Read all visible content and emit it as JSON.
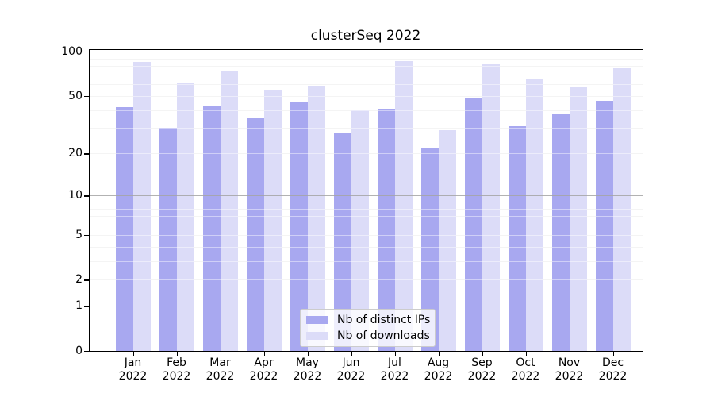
{
  "title": "clusterSeq 2022",
  "year_label": "2022",
  "colors": {
    "distinct_ips_bar": "#a8a8f0",
    "downloads_bar": "#dcdcf8",
    "major_gridline": "#b0b0b0",
    "minor_gridline": "#ececec",
    "axis": "#000000",
    "legend_border": "#cccccc"
  },
  "legend": {
    "position": "lower center",
    "items": [
      "Nb of distinct IPs",
      "Nb of downloads"
    ]
  },
  "y_axis": {
    "tick_labels": [
      "100",
      "50",
      "20",
      "10",
      "5",
      "2",
      "1",
      "0"
    ],
    "tick_values": [
      100,
      50,
      20,
      10,
      5,
      2,
      1,
      0
    ]
  },
  "chart_data": {
    "type": "bar",
    "title": "clusterSeq 2022",
    "xlabel": "",
    "ylabel": "",
    "yscale": "log1p",
    "ylim": [
      0,
      105
    ],
    "grid": true,
    "major_gridlines": [
      1,
      10,
      100
    ],
    "minor_gridlines": [
      2,
      3,
      4,
      5,
      6,
      7,
      8,
      9,
      20,
      30,
      40,
      50,
      60,
      70,
      80,
      90
    ],
    "legend_position": "lower center",
    "categories": [
      "Jan",
      "Feb",
      "Mar",
      "Apr",
      "May",
      "Jun",
      "Jul",
      "Aug",
      "Sep",
      "Oct",
      "Nov",
      "Dec"
    ],
    "category_year": "2022",
    "series": [
      {
        "name": "Nb of distinct IPs",
        "color": "#a8a8f0",
        "values": [
          42,
          30,
          43,
          35,
          45,
          28,
          41,
          22,
          48,
          31,
          38,
          46
        ]
      },
      {
        "name": "Nb of downloads",
        "color": "#dcdcf8",
        "values": [
          85,
          62,
          74,
          55,
          59,
          40,
          86,
          29,
          82,
          65,
          57,
          77
        ]
      }
    ]
  }
}
